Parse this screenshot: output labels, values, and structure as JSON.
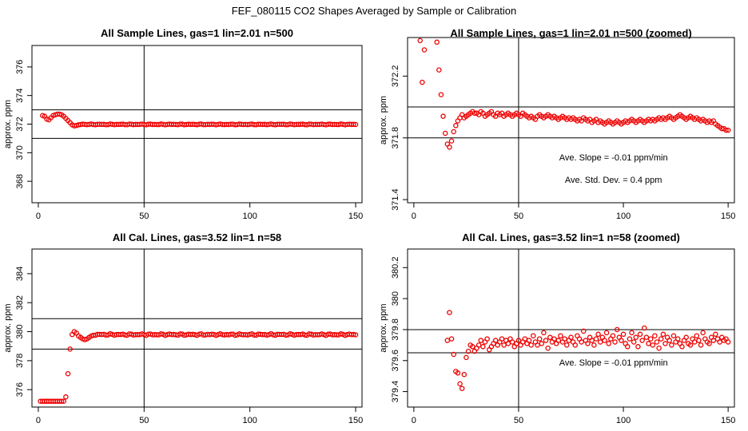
{
  "page": {
    "title": "FEF_080115  CO2 Shapes Averaged by Sample or Calibration"
  },
  "chart_data": [
    {
      "type": "scatter",
      "title": "All Sample Lines, gas=1 lin=2.01 n=500",
      "xlabel": "",
      "ylabel": "approx. ppm",
      "xlim": [
        -3,
        153
      ],
      "ylim": [
        366.5,
        377.5
      ],
      "xticks": [
        0,
        50,
        100,
        150
      ],
      "yticks": [
        368,
        370,
        372,
        374,
        376
      ],
      "hlines": [
        373.0,
        371.0
      ],
      "vline": 50,
      "annotations": [],
      "point_color": "#ee0000",
      "points": [
        [
          2,
          372.6
        ],
        [
          3,
          372.55
        ],
        [
          4,
          372.35
        ],
        [
          5,
          372.3
        ],
        [
          6,
          372.45
        ],
        [
          7,
          372.6
        ],
        [
          8,
          372.65
        ],
        [
          9,
          372.7
        ],
        [
          10,
          372.7
        ],
        [
          11,
          372.65
        ],
        [
          12,
          372.55
        ],
        [
          13,
          372.4
        ],
        [
          14,
          372.25
        ],
        [
          15,
          372.1
        ],
        [
          16,
          371.95
        ],
        [
          17,
          371.88
        ],
        [
          18,
          371.9
        ],
        [
          19,
          371.95
        ],
        [
          20,
          371.97
        ],
        [
          21,
          372.0
        ]
      ],
      "flat": {
        "from": 22,
        "to": 150,
        "value": 371.98,
        "amp": 0.03
      }
    },
    {
      "type": "scatter",
      "title": "All Sample Lines, gas=1 lin=2.01 n=500 (zoomed)",
      "xlabel": "",
      "ylabel": "approx. ppm",
      "xlim": [
        -3,
        153
      ],
      "ylim": [
        371.38,
        372.45
      ],
      "xticks": [
        0,
        50,
        100,
        150
      ],
      "yticks": [
        371.4,
        371.8,
        372.2
      ],
      "hlines": [
        372.0,
        371.8
      ],
      "vline": 50,
      "annotations": [
        "Ave. Slope =  -0.01  ppm/min",
        "Ave. Std. Dev. =  0.4  ppm"
      ],
      "point_color": "#ee0000",
      "points": [
        [
          3,
          372.43
        ],
        [
          4,
          372.16
        ],
        [
          5,
          372.37
        ],
        [
          11,
          372.42
        ],
        [
          12,
          372.24
        ],
        [
          13,
          372.08
        ],
        [
          14,
          371.94
        ],
        [
          15,
          371.83
        ],
        [
          16,
          371.76
        ],
        [
          17,
          371.74
        ],
        [
          18,
          371.78
        ],
        [
          19,
          371.84
        ],
        [
          20,
          371.88
        ],
        [
          21,
          371.91
        ],
        [
          22,
          371.93
        ],
        [
          23,
          371.95
        ],
        [
          24,
          371.93
        ],
        [
          25,
          371.94
        ],
        [
          26,
          371.95
        ],
        [
          27,
          371.96
        ],
        [
          28,
          371.97
        ],
        [
          29,
          371.96
        ],
        [
          30,
          371.96
        ],
        [
          31,
          371.95
        ],
        [
          32,
          371.97
        ],
        [
          33,
          371.96
        ],
        [
          34,
          371.94
        ],
        [
          35,
          371.95
        ],
        [
          36,
          371.96
        ],
        [
          37,
          371.97
        ],
        [
          38,
          371.95
        ],
        [
          39,
          371.94
        ],
        [
          40,
          371.96
        ],
        [
          41,
          371.95
        ],
        [
          42,
          371.96
        ],
        [
          43,
          371.94
        ],
        [
          44,
          371.95
        ],
        [
          45,
          371.96
        ],
        [
          46,
          371.95
        ],
        [
          47,
          371.94
        ],
        [
          48,
          371.95
        ],
        [
          49,
          371.96
        ],
        [
          50,
          371.95
        ],
        [
          51,
          371.94
        ],
        [
          52,
          371.96
        ],
        [
          53,
          371.95
        ],
        [
          54,
          371.94
        ],
        [
          55,
          371.93
        ],
        [
          56,
          371.94
        ],
        [
          57,
          371.93
        ],
        [
          58,
          371.92
        ],
        [
          59,
          371.94
        ],
        [
          60,
          371.95
        ],
        [
          61,
          371.94
        ],
        [
          62,
          371.93
        ],
        [
          63,
          371.94
        ],
        [
          64,
          371.95
        ],
        [
          65,
          371.94
        ],
        [
          66,
          371.93
        ],
        [
          67,
          371.94
        ],
        [
          68,
          371.93
        ],
        [
          69,
          371.92
        ],
        [
          70,
          371.93
        ],
        [
          71,
          371.94
        ],
        [
          72,
          371.93
        ],
        [
          73,
          371.92
        ],
        [
          74,
          371.93
        ],
        [
          75,
          371.92
        ],
        [
          76,
          371.93
        ],
        [
          77,
          371.92
        ],
        [
          78,
          371.91
        ],
        [
          79,
          371.92
        ],
        [
          80,
          371.91
        ],
        [
          81,
          371.93
        ],
        [
          82,
          371.92
        ],
        [
          83,
          371.91
        ],
        [
          84,
          371.92
        ],
        [
          85,
          371.9
        ],
        [
          86,
          371.91
        ],
        [
          87,
          371.92
        ],
        [
          88,
          371.9
        ],
        [
          89,
          371.91
        ],
        [
          90,
          371.9
        ],
        [
          91,
          371.89
        ],
        [
          92,
          371.9
        ],
        [
          93,
          371.91
        ],
        [
          94,
          371.9
        ],
        [
          95,
          371.89
        ],
        [
          96,
          371.9
        ],
        [
          97,
          371.91
        ],
        [
          98,
          371.9
        ],
        [
          99,
          371.89
        ],
        [
          100,
          371.9
        ],
        [
          101,
          371.91
        ],
        [
          102,
          371.9
        ],
        [
          103,
          371.91
        ],
        [
          104,
          371.92
        ],
        [
          105,
          371.91
        ],
        [
          106,
          371.9
        ],
        [
          107,
          371.91
        ],
        [
          108,
          371.92
        ],
        [
          109,
          371.91
        ],
        [
          110,
          371.9
        ],
        [
          111,
          371.91
        ],
        [
          112,
          371.92
        ],
        [
          113,
          371.91
        ],
        [
          114,
          371.92
        ],
        [
          115,
          371.91
        ],
        [
          116,
          371.92
        ],
        [
          117,
          371.93
        ],
        [
          118,
          371.92
        ],
        [
          119,
          371.93
        ],
        [
          120,
          371.92
        ],
        [
          121,
          371.93
        ],
        [
          122,
          371.94
        ],
        [
          123,
          371.93
        ],
        [
          124,
          371.92
        ],
        [
          125,
          371.93
        ],
        [
          126,
          371.94
        ],
        [
          127,
          371.95
        ],
        [
          128,
          371.94
        ],
        [
          129,
          371.93
        ],
        [
          130,
          371.92
        ],
        [
          131,
          371.93
        ],
        [
          132,
          371.94
        ],
        [
          133,
          371.93
        ],
        [
          134,
          371.92
        ],
        [
          135,
          371.93
        ],
        [
          136,
          371.92
        ],
        [
          137,
          371.91
        ],
        [
          138,
          371.92
        ],
        [
          139,
          371.91
        ],
        [
          140,
          371.9
        ],
        [
          141,
          371.91
        ],
        [
          142,
          371.9
        ],
        [
          143,
          371.91
        ],
        [
          144,
          371.89
        ],
        [
          145,
          371.88
        ],
        [
          146,
          371.87
        ],
        [
          147,
          371.86
        ],
        [
          148,
          371.86
        ],
        [
          149,
          371.85
        ],
        [
          150,
          371.85
        ]
      ]
    },
    {
      "type": "scatter",
      "title": "All Cal. Lines, gas=3.52 lin=1 n=58",
      "xlabel": "",
      "ylabel": "approx. ppm",
      "xlim": [
        -3,
        153
      ],
      "ylim": [
        374.8,
        385.7
      ],
      "xticks": [
        0,
        50,
        100,
        150
      ],
      "yticks": [
        376,
        378,
        380,
        382,
        384
      ],
      "hlines": [
        380.9,
        378.8
      ],
      "vline": 50,
      "annotations": [],
      "point_color": "#ee0000",
      "points": [
        [
          1,
          375.2
        ],
        [
          2,
          375.2
        ],
        [
          3,
          375.2
        ],
        [
          4,
          375.2
        ],
        [
          5,
          375.2
        ],
        [
          6,
          375.2
        ],
        [
          7,
          375.2
        ],
        [
          8,
          375.2
        ],
        [
          9,
          375.2
        ],
        [
          10,
          375.2
        ],
        [
          11,
          375.2
        ],
        [
          12,
          375.2
        ],
        [
          13,
          375.5
        ],
        [
          14,
          377.1
        ],
        [
          15,
          378.8
        ],
        [
          16,
          379.8
        ],
        [
          17,
          380.0
        ],
        [
          18,
          379.9
        ],
        [
          19,
          379.7
        ],
        [
          20,
          379.6
        ],
        [
          21,
          379.5
        ],
        [
          22,
          379.45
        ],
        [
          23,
          379.5
        ],
        [
          24,
          379.6
        ],
        [
          25,
          379.7
        ],
        [
          26,
          379.75
        ]
      ],
      "flat": {
        "from": 27,
        "to": 150,
        "value": 379.8,
        "amp": 0.06
      }
    },
    {
      "type": "scatter",
      "title": "All Cal. Lines, gas=3.52 lin=1 n=58 (zoomed)",
      "xlabel": "",
      "ylabel": "approx. ppm",
      "xlim": [
        -3,
        153
      ],
      "ylim": [
        379.3,
        380.32
      ],
      "xticks": [
        0,
        50,
        100,
        150
      ],
      "yticks": [
        379.4,
        379.6,
        379.8,
        380.0,
        380.2
      ],
      "hlines": [
        379.8,
        379.65
      ],
      "vline": 50,
      "annotations": [
        "Ave. Slope =  -0.01  ppm/min"
      ],
      "point_color": "#ee0000",
      "points": [
        [
          16,
          379.73
        ],
        [
          17,
          379.91
        ],
        [
          18,
          379.74
        ],
        [
          19,
          379.64
        ],
        [
          20,
          379.53
        ],
        [
          21,
          379.52
        ],
        [
          22,
          379.45
        ],
        [
          23,
          379.42
        ],
        [
          24,
          379.51
        ],
        [
          25,
          379.62
        ],
        [
          26,
          379.66
        ],
        [
          27,
          379.7
        ],
        [
          28,
          379.69
        ],
        [
          29,
          379.66
        ],
        [
          30,
          379.68
        ],
        [
          31,
          379.7
        ],
        [
          32,
          379.73
        ],
        [
          33,
          379.69
        ],
        [
          34,
          379.72
        ],
        [
          35,
          379.74
        ],
        [
          36,
          379.67
        ],
        [
          37,
          379.69
        ],
        [
          38,
          379.71
        ],
        [
          39,
          379.73
        ],
        [
          40,
          379.7
        ],
        [
          41,
          379.72
        ],
        [
          42,
          379.74
        ],
        [
          43,
          379.7
        ],
        [
          44,
          379.73
        ],
        [
          45,
          379.71
        ],
        [
          46,
          379.74
        ],
        [
          47,
          379.72
        ],
        [
          48,
          379.69
        ],
        [
          49,
          379.71
        ],
        [
          50,
          379.73
        ],
        [
          51,
          379.7
        ],
        [
          52,
          379.72
        ],
        [
          53,
          379.74
        ],
        [
          54,
          379.71
        ],
        [
          55,
          379.73
        ],
        [
          56,
          379.7
        ],
        [
          57,
          379.76
        ],
        [
          58,
          379.72
        ],
        [
          59,
          379.7
        ],
        [
          60,
          379.74
        ],
        [
          61,
          379.71
        ],
        [
          62,
          379.78
        ],
        [
          63,
          379.73
        ],
        [
          64,
          379.68
        ],
        [
          65,
          379.75
        ],
        [
          66,
          379.72
        ],
        [
          67,
          379.74
        ],
        [
          68,
          379.71
        ],
        [
          69,
          379.73
        ],
        [
          70,
          379.76
        ],
        [
          71,
          379.72
        ],
        [
          72,
          379.74
        ],
        [
          73,
          379.7
        ],
        [
          74,
          379.73
        ],
        [
          75,
          379.75
        ],
        [
          76,
          379.72
        ],
        [
          77,
          379.7
        ],
        [
          78,
          379.76
        ],
        [
          79,
          379.74
        ],
        [
          80,
          379.72
        ],
        [
          81,
          379.79
        ],
        [
          82,
          379.73
        ],
        [
          83,
          379.71
        ],
        [
          84,
          379.75
        ],
        [
          85,
          379.73
        ],
        [
          86,
          379.7
        ],
        [
          87,
          379.74
        ],
        [
          88,
          379.77
        ],
        [
          89,
          379.72
        ],
        [
          90,
          379.75
        ],
        [
          91,
          379.73
        ],
        [
          92,
          379.78
        ],
        [
          93,
          379.71
        ],
        [
          94,
          379.74
        ],
        [
          95,
          379.76
        ],
        [
          96,
          379.72
        ],
        [
          97,
          379.8
        ],
        [
          98,
          379.75
        ],
        [
          99,
          379.73
        ],
        [
          100,
          379.77
        ],
        [
          101,
          379.71
        ],
        [
          102,
          379.69
        ],
        [
          103,
          379.74
        ],
        [
          104,
          379.78
        ],
        [
          105,
          379.72
        ],
        [
          106,
          379.75
        ],
        [
          107,
          379.69
        ],
        [
          108,
          379.77
        ],
        [
          109,
          379.73
        ],
        [
          110,
          379.81
        ],
        [
          111,
          379.75
        ],
        [
          112,
          379.71
        ],
        [
          113,
          379.74
        ],
        [
          114,
          379.7
        ],
        [
          115,
          379.76
        ],
        [
          116,
          379.72
        ],
        [
          117,
          379.68
        ],
        [
          118,
          379.74
        ],
        [
          119,
          379.77
        ],
        [
          120,
          379.71
        ],
        [
          121,
          379.75
        ],
        [
          122,
          379.73
        ],
        [
          123,
          379.7
        ],
        [
          124,
          379.76
        ],
        [
          125,
          379.72
        ],
        [
          126,
          379.74
        ],
        [
          127,
          379.71
        ],
        [
          128,
          379.69
        ],
        [
          129,
          379.73
        ],
        [
          130,
          379.75
        ],
        [
          131,
          379.71
        ],
        [
          132,
          379.7
        ],
        [
          133,
          379.74
        ],
        [
          134,
          379.72
        ],
        [
          135,
          379.76
        ],
        [
          136,
          379.73
        ],
        [
          137,
          379.7
        ],
        [
          138,
          379.78
        ],
        [
          139,
          379.74
        ],
        [
          140,
          379.72
        ],
        [
          141,
          379.71
        ],
        [
          142,
          379.75
        ],
        [
          143,
          379.73
        ],
        [
          144,
          379.77
        ],
        [
          145,
          379.74
        ],
        [
          146,
          379.72
        ],
        [
          147,
          379.75
        ],
        [
          148,
          379.73
        ],
        [
          149,
          379.74
        ],
        [
          150,
          379.72
        ]
      ]
    }
  ]
}
